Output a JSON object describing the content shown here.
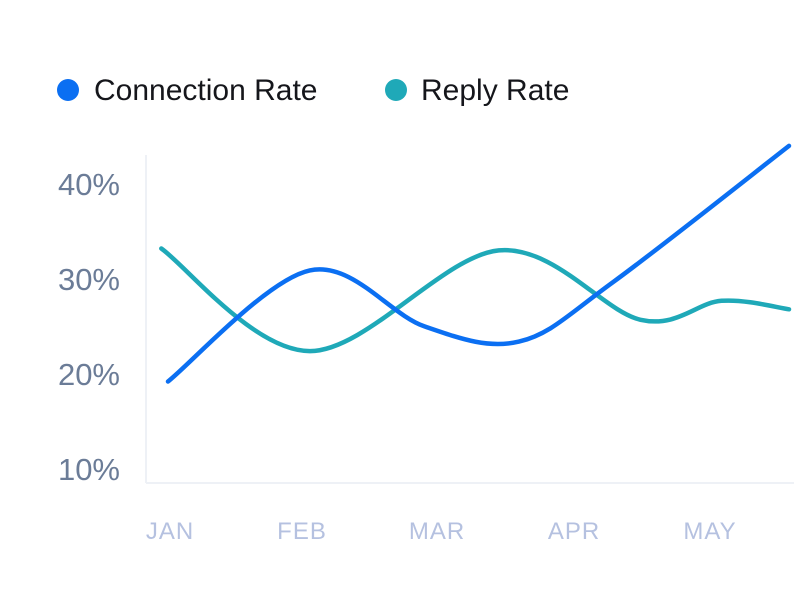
{
  "chart_data": {
    "type": "line",
    "categories": [
      "JAN",
      "FEB",
      "MAR",
      "APR",
      "MAY"
    ],
    "y_ticks": [
      "10%",
      "20%",
      "30%",
      "40%"
    ],
    "ylim": [
      10,
      43
    ],
    "series": [
      {
        "name": "Connection Rate",
        "color": "#0b6ff2",
        "x": [
          0,
          1.05,
          1.9,
          2.6,
          3.3,
          4.6
        ],
        "values": [
          19,
          30.7,
          24.8,
          23.2,
          29.5,
          43.8
        ]
      },
      {
        "name": "Reply Rate",
        "color": "#1fa9b8",
        "x": [
          -0.05,
          1.05,
          2.45,
          3.5,
          4.1,
          4.6
        ],
        "values": [
          33,
          22.2,
          32.8,
          25.5,
          27.5,
          26.6
        ]
      }
    ]
  }
}
